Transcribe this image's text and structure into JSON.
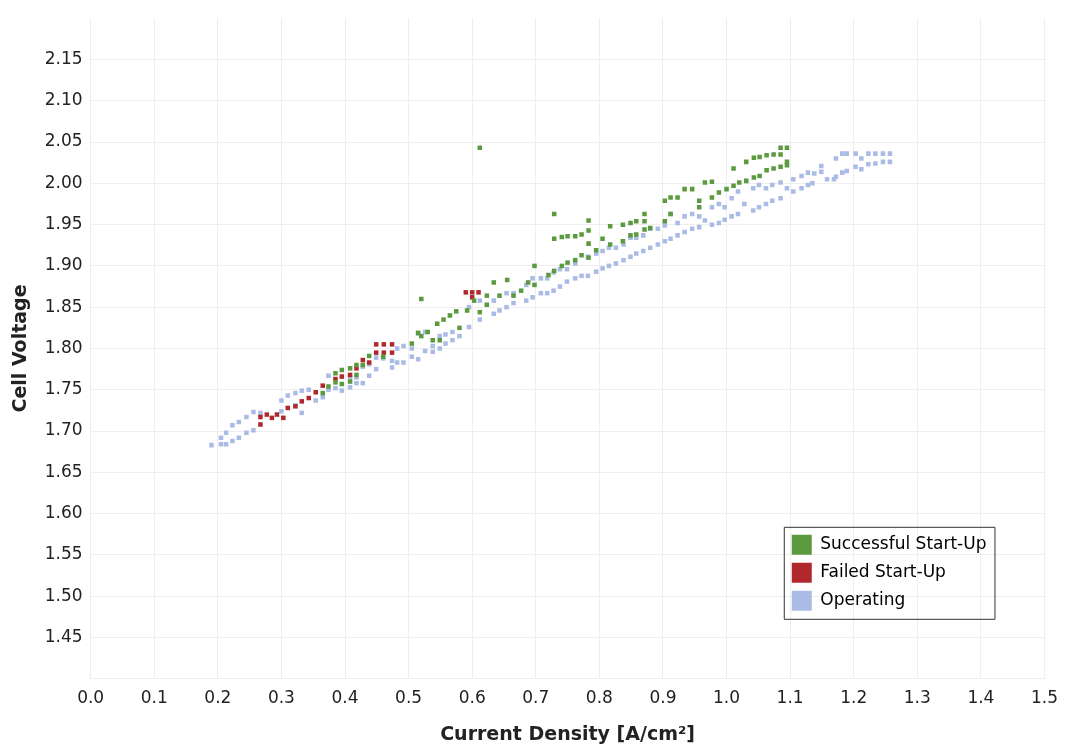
{
  "chart_data": {
    "type": "scatter",
    "xlabel": "Current Density [A/cm²]",
    "ylabel": "Cell Voltage",
    "marker": "square",
    "grid": true,
    "legend": "bottom right",
    "xlim": [
      0,
      1.5
    ],
    "ylim": [
      1.4,
      2.2
    ],
    "xticks": [
      {
        "value": 0,
        "label": "0.0"
      },
      {
        "value": 0.1,
        "label": "0.1"
      },
      {
        "value": 0.2,
        "label": "0.2"
      },
      {
        "value": 0.3,
        "label": "0.3"
      },
      {
        "value": 0.4,
        "label": "0.4"
      },
      {
        "value": 0.5,
        "label": "0.5"
      },
      {
        "value": 0.6,
        "label": "0.6"
      },
      {
        "value": 0.7,
        "label": "0.7"
      },
      {
        "value": 0.8,
        "label": "0.8"
      },
      {
        "value": 0.9,
        "label": "0.9"
      },
      {
        "value": 1,
        "label": "1.0"
      },
      {
        "value": 1.1,
        "label": "1.1"
      },
      {
        "value": 1.2,
        "label": "1.2"
      },
      {
        "value": 1.3,
        "label": "1.3"
      },
      {
        "value": 1.4,
        "label": "1.4"
      },
      {
        "value": 1.5,
        "label": "1.5"
      }
    ],
    "yticks": [
      {
        "value": 1.45,
        "label": "1.45"
      },
      {
        "value": 1.5,
        "label": "1.50"
      },
      {
        "value": 1.55,
        "label": "1.55"
      },
      {
        "value": 1.6,
        "label": "1.60"
      },
      {
        "value": 1.65,
        "label": "1.65"
      },
      {
        "value": 1.7,
        "label": "1.70"
      },
      {
        "value": 1.75,
        "label": "1.75"
      },
      {
        "value": 1.8,
        "label": "1.80"
      },
      {
        "value": 1.85,
        "label": "1.85"
      },
      {
        "value": 1.9,
        "label": "1.90"
      },
      {
        "value": 1.95,
        "label": "1.95"
      },
      {
        "value": 2,
        "label": "2.00"
      },
      {
        "value": 2.05,
        "label": "2.05"
      },
      {
        "value": 2.1,
        "label": "2.10"
      },
      {
        "value": 2.15,
        "label": "2.15"
      }
    ],
    "series": [
      {
        "name": "Successful Start-Up",
        "color": "#5b9a3e",
        "x": [
          0.365,
          0.374,
          0.385,
          0.385,
          0.395,
          0.395,
          0.408,
          0.408,
          0.418,
          0.418,
          0.428,
          0.438,
          0.46,
          0.505,
          0.515,
          0.538,
          0.549,
          0.52,
          0.52,
          0.53,
          0.545,
          0.555,
          0.565,
          0.575,
          0.58,
          0.592,
          0.603,
          0.612,
          0.623,
          0.623,
          0.634,
          0.643,
          0.655,
          0.665,
          0.677,
          0.688,
          0.698,
          0.698,
          0.72,
          0.729,
          0.741,
          0.75,
          0.762,
          0.772,
          0.783,
          0.795,
          0.612,
          0.729,
          0.729,
          0.741,
          0.75,
          0.762,
          0.772,
          0.783,
          0.783,
          0.783,
          0.805,
          0.817,
          0.817,
          0.837,
          0.837,
          0.849,
          0.849,
          0.858,
          0.858,
          0.871,
          0.871,
          0.871,
          0.88,
          0.903,
          0.903,
          0.912,
          0.912,
          0.923,
          0.934,
          0.946,
          0.957,
          0.957,
          0.966,
          0.977,
          0.977,
          0.988,
          1.0,
          1.011,
          1.011,
          1.02,
          1.031,
          1.031,
          1.043,
          1.043,
          1.052,
          1.052,
          1.063,
          1.063,
          1.074,
          1.074,
          1.085,
          1.085,
          1.085,
          1.095,
          1.095,
          1.095
        ],
        "values": [
          1.746,
          1.754,
          1.77,
          1.759,
          1.774,
          1.757,
          1.776,
          1.76,
          1.78,
          1.768,
          1.78,
          1.791,
          1.79,
          1.806,
          1.819,
          1.81,
          1.81,
          1.86,
          1.815,
          1.82,
          1.83,
          1.835,
          1.84,
          1.845,
          1.825,
          1.846,
          1.858,
          1.844,
          1.864,
          1.853,
          1.88,
          1.864,
          1.883,
          1.864,
          1.87,
          1.88,
          1.9,
          1.877,
          1.889,
          1.894,
          1.9,
          1.904,
          1.907,
          1.913,
          1.91,
          1.919,
          2.043,
          1.963,
          1.933,
          1.935,
          1.936,
          1.936,
          1.938,
          1.955,
          1.943,
          1.927,
          1.933,
          1.948,
          1.926,
          1.95,
          1.93,
          1.952,
          1.937,
          1.954,
          1.938,
          1.963,
          1.954,
          1.944,
          1.946,
          1.979,
          1.954,
          1.983,
          1.963,
          1.983,
          1.993,
          1.993,
          1.979,
          1.971,
          2.001,
          2.002,
          1.983,
          1.989,
          1.993,
          2.018,
          1.997,
          2.001,
          2.026,
          2.003,
          2.031,
          2.007,
          2.032,
          2.009,
          2.034,
          2.016,
          2.035,
          2.018,
          2.043,
          2.035,
          2.02,
          2.043,
          2.026,
          2.022
        ]
      },
      {
        "name": "Failed Start-Up",
        "color": "#b0282b",
        "x": [
          0.267,
          0.267,
          0.277,
          0.285,
          0.293,
          0.303,
          0.31,
          0.322,
          0.332,
          0.343,
          0.354,
          0.365,
          0.385,
          0.395,
          0.408,
          0.418,
          0.428,
          0.438,
          0.449,
          0.449,
          0.461,
          0.461,
          0.474,
          0.474,
          0.59,
          0.6,
          0.61,
          0.6
        ],
        "values": [
          1.717,
          1.708,
          1.72,
          1.716,
          1.72,
          1.716,
          1.728,
          1.73,
          1.736,
          1.74,
          1.747,
          1.755,
          1.763,
          1.766,
          1.768,
          1.776,
          1.786,
          1.783,
          1.805,
          1.795,
          1.805,
          1.795,
          1.805,
          1.795,
          1.868,
          1.868,
          1.868,
          1.862
        ]
      },
      {
        "name": "Operating",
        "color": "#aabbe6",
        "x": [
          0.19,
          0.205,
          0.205,
          0.213,
          0.213,
          0.223,
          0.223,
          0.233,
          0.233,
          0.245,
          0.245,
          0.256,
          0.256,
          0.267,
          0.3,
          0.3,
          0.31,
          0.322,
          0.322,
          0.332,
          0.332,
          0.343,
          0.354,
          0.365,
          0.374,
          0.374,
          0.385,
          0.395,
          0.408,
          0.408,
          0.418,
          0.418,
          0.428,
          0.428,
          0.438,
          0.438,
          0.449,
          0.449,
          0.46,
          0.474,
          0.474,
          0.482,
          0.482,
          0.492,
          0.492,
          0.505,
          0.505,
          0.515,
          0.515,
          0.526,
          0.526,
          0.538,
          0.538,
          0.549,
          0.549,
          0.558,
          0.558,
          0.569,
          0.569,
          0.58,
          0.595,
          0.595,
          0.612,
          0.612,
          0.634,
          0.634,
          0.643,
          0.654,
          0.654,
          0.665,
          0.665,
          0.685,
          0.685,
          0.695,
          0.695,
          0.708,
          0.708,
          0.718,
          0.718,
          0.728,
          0.728,
          0.738,
          0.738,
          0.749,
          0.749,
          0.762,
          0.762,
          0.772,
          0.782,
          0.782,
          0.795,
          0.795,
          0.805,
          0.805,
          0.815,
          0.815,
          0.826,
          0.826,
          0.838,
          0.838,
          0.849,
          0.849,
          0.858,
          0.858,
          0.869,
          0.869,
          0.88,
          0.88,
          0.892,
          0.892,
          0.903,
          0.903,
          0.912,
          0.912,
          0.923,
          0.923,
          0.934,
          0.934,
          0.946,
          0.946,
          0.957,
          0.957,
          0.966,
          0.977,
          0.977,
          0.988,
          0.988,
          0.997,
          0.997,
          1.008,
          1.008,
          1.018,
          1.018,
          1.028,
          1.042,
          1.042,
          1.051,
          1.051,
          1.062,
          1.062,
          1.072,
          1.072,
          1.085,
          1.085,
          1.095,
          1.105,
          1.105,
          1.118,
          1.118,
          1.128,
          1.128,
          1.135,
          1.138,
          1.149,
          1.149,
          1.158,
          1.169,
          1.172,
          1.172,
          1.182,
          1.182,
          1.189,
          1.189,
          1.203,
          1.203,
          1.212,
          1.212,
          1.223,
          1.223,
          1.234,
          1.234,
          1.246,
          1.246,
          1.257,
          1.257
        ],
        "values": [
          1.683,
          1.692,
          1.684,
          1.698,
          1.684,
          1.707,
          1.688,
          1.711,
          1.692,
          1.717,
          1.698,
          1.723,
          1.701,
          1.722,
          1.737,
          1.724,
          1.743,
          1.746,
          1.731,
          1.749,
          1.722,
          1.75,
          1.737,
          1.741,
          1.767,
          1.75,
          1.752,
          1.749,
          1.765,
          1.753,
          1.765,
          1.758,
          1.778,
          1.758,
          1.781,
          1.767,
          1.789,
          1.775,
          1.788,
          1.785,
          1.777,
          1.8,
          1.783,
          1.803,
          1.783,
          1.8,
          1.79,
          1.818,
          1.787,
          1.82,
          1.797,
          1.803,
          1.796,
          1.815,
          1.8,
          1.817,
          1.806,
          1.82,
          1.81,
          1.815,
          1.85,
          1.826,
          1.858,
          1.835,
          1.858,
          1.842,
          1.846,
          1.867,
          1.85,
          1.867,
          1.855,
          1.877,
          1.858,
          1.885,
          1.862,
          1.885,
          1.867,
          1.885,
          1.867,
          1.892,
          1.87,
          1.896,
          1.875,
          1.896,
          1.881,
          1.903,
          1.885,
          1.888,
          1.911,
          1.888,
          1.915,
          1.893,
          1.918,
          1.897,
          1.922,
          1.9,
          1.922,
          1.903,
          1.926,
          1.907,
          1.934,
          1.911,
          1.934,
          1.915,
          1.937,
          1.918,
          1.945,
          1.922,
          1.945,
          1.926,
          1.949,
          1.93,
          1.963,
          1.933,
          1.952,
          1.937,
          1.96,
          1.941,
          1.963,
          1.945,
          1.96,
          1.947,
          1.955,
          1.971,
          1.95,
          1.975,
          1.952,
          1.971,
          1.956,
          1.982,
          1.96,
          1.99,
          1.963,
          1.975,
          1.994,
          1.967,
          1.998,
          1.971,
          1.994,
          1.975,
          1.998,
          1.979,
          2.001,
          1.982,
          1.994,
          2.005,
          1.99,
          2.009,
          1.994,
          2.013,
          1.998,
          2,
          2.012,
          2.021,
          2.014,
          2.005,
          2.005,
          2.03,
          2.008,
          2.036,
          2.013,
          2.036,
          2.015,
          2.036,
          2.02,
          2.03,
          2.017,
          2.036,
          2.023,
          2.036,
          2.024,
          2.036,
          2.026,
          2.036,
          2.026
        ]
      }
    ]
  }
}
